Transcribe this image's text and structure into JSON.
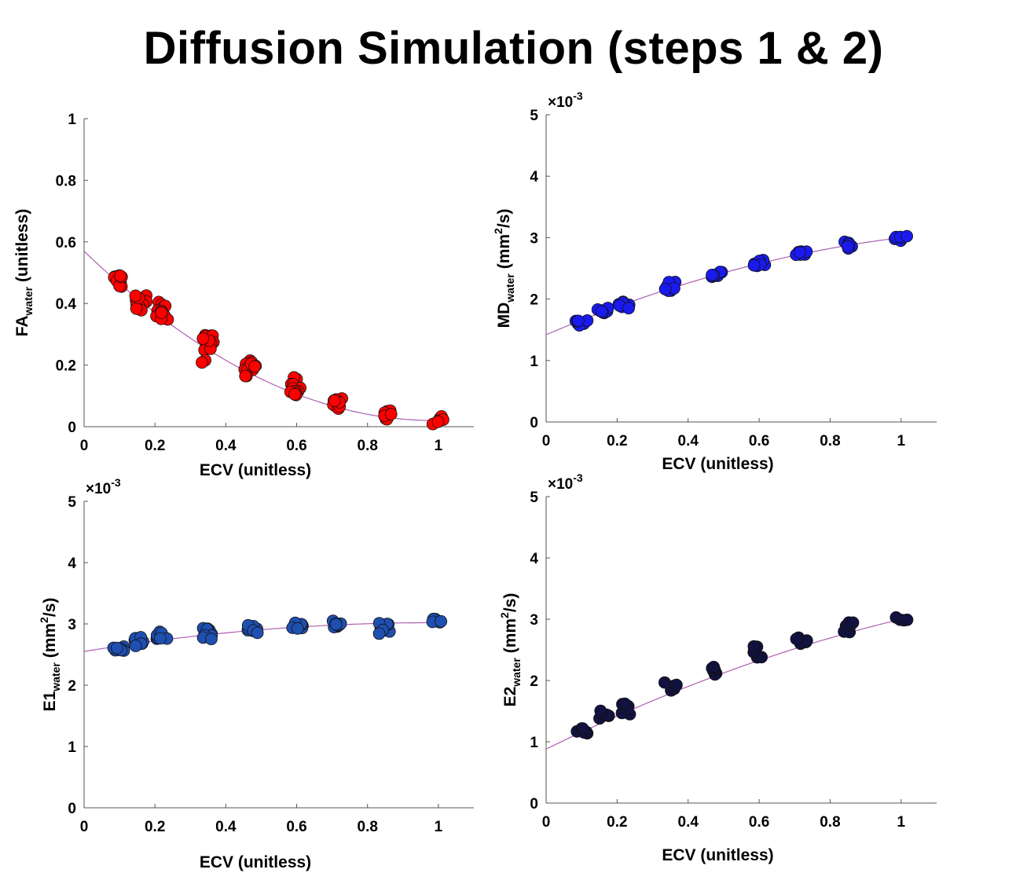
{
  "title": "Diffusion Simulation (steps 1 & 2)",
  "chart_data": [
    {
      "id": "fa",
      "type": "scatter",
      "ylabel_main": "FA",
      "ylabel_sub": "water",
      "ylabel_rest": " (unitless)",
      "xlabel": "ECV (unitless)",
      "xlim": [
        0,
        1.1
      ],
      "ylim": [
        0,
        1
      ],
      "xticks": [
        0,
        0.2,
        0.4,
        0.6,
        0.8,
        1
      ],
      "yticks": [
        0,
        0.2,
        0.4,
        0.6,
        0.8,
        1
      ],
      "exponent": "",
      "marker_color": "#ff0000",
      "fit_color": "#b05fb0",
      "fit_coeffs": [
        0.57,
        -1.11,
        0.56
      ],
      "groups": [
        {
          "x": 0.1,
          "y": [
            0.49,
            0.48,
            0.47,
            0.46,
            0.49
          ]
        },
        {
          "x": 0.16,
          "y": [
            0.42,
            0.41,
            0.4,
            0.39,
            0.38,
            0.42
          ]
        },
        {
          "x": 0.22,
          "y": [
            0.4,
            0.39,
            0.38,
            0.36,
            0.35,
            0.37
          ]
        },
        {
          "x": 0.35,
          "y": [
            0.3,
            0.29,
            0.27,
            0.26,
            0.25,
            0.21,
            0.28
          ]
        },
        {
          "x": 0.47,
          "y": [
            0.21,
            0.2,
            0.19,
            0.18,
            0.17,
            0.2
          ]
        },
        {
          "x": 0.6,
          "y": [
            0.16,
            0.14,
            0.13,
            0.12,
            0.11,
            0.1
          ]
        },
        {
          "x": 0.72,
          "y": [
            0.09,
            0.08,
            0.07,
            0.06,
            0.08
          ]
        },
        {
          "x": 0.85,
          "y": [
            0.05,
            0.04,
            0.03,
            0.02,
            0.04
          ]
        },
        {
          "x": 1.0,
          "y": [
            0.03,
            0.02,
            0.01
          ]
        }
      ]
    },
    {
      "id": "md",
      "type": "scatter",
      "ylabel_main": "MD",
      "ylabel_sub": "water",
      "ylabel_rest": " (mm",
      "ylabel_sup": "2",
      "ylabel_end": "/s)",
      "xlabel": "ECV (unitless)",
      "xlim": [
        0,
        1.1
      ],
      "ylim": [
        0,
        5
      ],
      "xticks": [
        0,
        0.2,
        0.4,
        0.6,
        0.8,
        1
      ],
      "yticks": [
        0,
        1,
        2,
        3,
        4,
        5
      ],
      "exponent": "×10",
      "exponent_power": "-3",
      "marker_color": "#1a1aee",
      "fit_color": "#b05fb0",
      "fit_coeffs": [
        1.42,
        2.45,
        -0.87
      ],
      "groups": [
        {
          "x": 0.1,
          "y": [
            1.62,
            1.6,
            1.65,
            1.63
          ]
        },
        {
          "x": 0.16,
          "y": [
            1.78,
            1.82,
            1.85,
            1.8
          ]
        },
        {
          "x": 0.22,
          "y": [
            1.9,
            1.93,
            1.97,
            1.88
          ]
        },
        {
          "x": 0.35,
          "y": [
            2.15,
            2.2,
            2.25,
            2.18
          ]
        },
        {
          "x": 0.48,
          "y": [
            2.35,
            2.4,
            2.43,
            2.38
          ]
        },
        {
          "x": 0.6,
          "y": [
            2.55,
            2.58,
            2.62,
            2.57
          ]
        },
        {
          "x": 0.72,
          "y": [
            2.7,
            2.75,
            2.78,
            2.73
          ]
        },
        {
          "x": 0.85,
          "y": [
            2.85,
            2.9,
            2.93,
            2.88
          ]
        },
        {
          "x": 1.0,
          "y": [
            2.98,
            3.02,
            3.0
          ]
        }
      ]
    },
    {
      "id": "e1",
      "type": "scatter",
      "ylabel_main": "E1",
      "ylabel_sub": "water",
      "ylabel_rest": " (mm",
      "ylabel_sup": "2",
      "ylabel_end": "/s)",
      "xlabel": "ECV (unitless)",
      "xlim": [
        0,
        1.1
      ],
      "ylim": [
        0,
        5
      ],
      "xticks": [
        0,
        0.2,
        0.4,
        0.6,
        0.8,
        1
      ],
      "yticks": [
        0,
        1,
        2,
        3,
        4,
        5
      ],
      "exponent": "×10",
      "exponent_power": "-3",
      "marker_color": "#1f4fb0",
      "fit_color": "#b05fb0",
      "fit_coeffs": [
        2.55,
        0.95,
        -0.48
      ],
      "groups": [
        {
          "x": 0.1,
          "y": [
            2.6,
            2.55,
            2.62,
            2.58
          ]
        },
        {
          "x": 0.16,
          "y": [
            2.7,
            2.75,
            2.78,
            2.65
          ]
        },
        {
          "x": 0.22,
          "y": [
            2.78,
            2.82,
            2.85,
            2.75
          ]
        },
        {
          "x": 0.35,
          "y": [
            2.85,
            2.9,
            2.93,
            2.8,
            2.78
          ]
        },
        {
          "x": 0.48,
          "y": [
            2.9,
            2.93,
            2.96,
            2.88
          ]
        },
        {
          "x": 0.6,
          "y": [
            2.95,
            2.98,
            3.0,
            2.92
          ]
        },
        {
          "x": 0.72,
          "y": [
            2.95,
            3.0,
            3.02,
            2.98
          ]
        },
        {
          "x": 0.85,
          "y": [
            2.9,
            2.97,
            3.03,
            2.87
          ]
        },
        {
          "x": 1.0,
          "y": [
            3.05,
            3.08,
            3.03
          ]
        }
      ]
    },
    {
      "id": "e2",
      "type": "scatter",
      "ylabel_main": "E2",
      "ylabel_sub": "water",
      "ylabel_rest": " (mm",
      "ylabel_sup": "2",
      "ylabel_end": "/s)",
      "xlabel": "ECV (unitless)",
      "xlim": [
        0,
        1.1
      ],
      "ylim": [
        0,
        5
      ],
      "xticks": [
        0,
        0.2,
        0.4,
        0.6,
        0.8,
        1
      ],
      "yticks": [
        0,
        1,
        2,
        3,
        4,
        5
      ],
      "exponent": "×10",
      "exponent_power": "-3",
      "marker_color": "#121240",
      "fit_color": "#b05fb0",
      "fit_coeffs": [
        0.88,
        2.85,
        -0.73
      ],
      "groups": [
        {
          "x": 0.1,
          "y": [
            1.15,
            1.18,
            1.2
          ]
        },
        {
          "x": 0.16,
          "y": [
            1.4,
            1.45,
            1.48
          ]
        },
        {
          "x": 0.22,
          "y": [
            1.48,
            1.55,
            1.6
          ]
        },
        {
          "x": 0.35,
          "y": [
            1.85,
            1.9,
            1.95
          ]
        },
        {
          "x": 0.48,
          "y": [
            2.12,
            2.18,
            2.22
          ]
        },
        {
          "x": 0.6,
          "y": [
            2.4,
            2.48,
            2.55
          ]
        },
        {
          "x": 0.72,
          "y": [
            2.6,
            2.65,
            2.7
          ]
        },
        {
          "x": 0.85,
          "y": [
            2.78,
            2.88,
            2.93
          ]
        },
        {
          "x": 1.0,
          "y": [
            2.97,
            3.02
          ]
        }
      ]
    }
  ]
}
